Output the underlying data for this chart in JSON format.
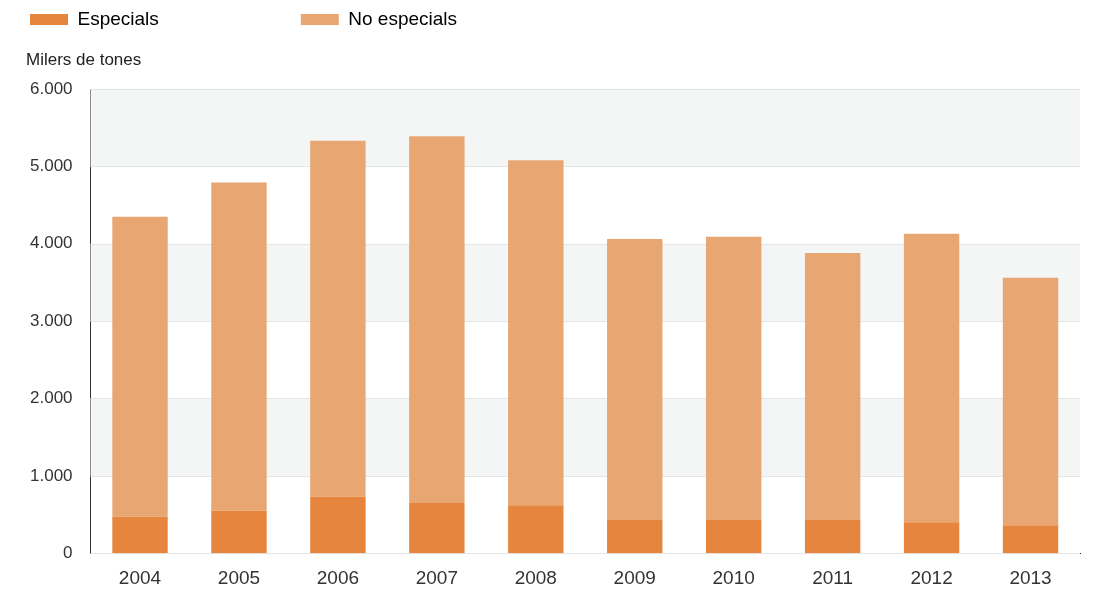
{
  "chart_data": {
    "type": "bar",
    "stacked": true,
    "ylabel": "Milers de tones",
    "categories": [
      "2004",
      "2005",
      "2006",
      "2007",
      "2008",
      "2009",
      "2010",
      "2011",
      "2012",
      "2013"
    ],
    "series": [
      {
        "name": "Especials",
        "color": "#e6863e",
        "values": [
          470,
          550,
          730,
          650,
          620,
          430,
          430,
          430,
          400,
          360
        ]
      },
      {
        "name": "No especials",
        "color": "#e8a772",
        "values": [
          3880,
          4240,
          4600,
          4740,
          4460,
          3630,
          3660,
          3450,
          3730,
          3200
        ]
      }
    ],
    "ylim": [
      0,
      6000
    ],
    "yticks": [
      0,
      {
        "value": 1000,
        "label": "1.000"
      },
      {
        "value": 2000,
        "label": "2.000"
      },
      {
        "value": 3000,
        "label": "3.000"
      },
      {
        "value": 4000,
        "label": "4.000"
      },
      {
        "value": 5000,
        "label": "5.000"
      },
      {
        "value": 6000,
        "label": "6.000"
      }
    ],
    "grid": "y",
    "legend": "top left"
  }
}
